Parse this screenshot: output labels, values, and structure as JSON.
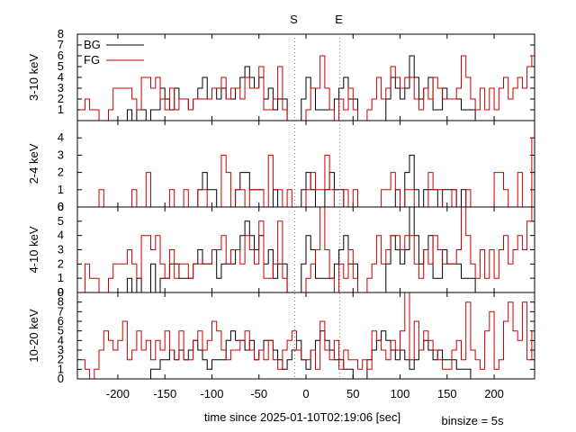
{
  "chart_data": {
    "type": "line",
    "xlabel": "time since 2025-01-10T02:19:06 [sec]",
    "binsize_label": "binsize = 5s",
    "xlim": [
      -243,
      243
    ],
    "xticks": [
      -200,
      -150,
      -100,
      -50,
      0,
      50,
      100,
      150,
      200
    ],
    "markers": [
      {
        "label": "S",
        "x": -12
      },
      {
        "label": "E",
        "x": 36
      }
    ],
    "legend": {
      "placement": "top-left",
      "entries": [
        {
          "name": "BG",
          "color": "#000000"
        },
        {
          "name": "FG",
          "color": "#cc0000"
        }
      ]
    },
    "colors": {
      "BG": "#000000",
      "FG": "#cc0000"
    },
    "x_start": -240,
    "bin_width": 5,
    "panels": [
      {
        "label": "3-10 keV",
        "ylim": [
          0,
          8
        ],
        "yticks": [
          1,
          2,
          3,
          4,
          5,
          6,
          7,
          8
        ],
        "series": [
          {
            "name": "BG",
            "values": [
              0,
              0,
              0,
              0,
              0,
              0,
              0,
              0,
              0,
              0,
              1,
              0,
              1,
              1,
              0,
              1,
              1,
              3,
              2,
              1,
              3,
              2,
              2,
              1,
              2,
              3,
              4,
              2,
              3,
              2,
              3,
              2,
              2,
              3,
              4,
              5,
              4,
              3,
              4,
              2,
              3,
              1,
              2,
              2,
              0,
              0,
              0,
              2,
              4,
              3,
              1,
              1,
              1,
              1,
              2,
              3,
              4,
              2,
              2,
              0,
              0,
              0,
              0,
              0,
              0,
              2,
              4,
              3,
              2,
              3,
              6,
              4,
              2,
              3,
              4,
              1,
              1,
              3,
              2,
              2,
              2,
              1,
              1,
              1,
              0,
              0,
              0,
              0,
              0,
              0,
              0,
              0,
              0,
              0,
              0,
              0,
              0
            ]
          },
          {
            "name": "FG",
            "values": [
              1,
              2,
              1,
              1,
              0,
              0,
              1,
              3,
              3,
              3,
              3,
              2,
              1,
              4,
              4,
              3,
              4,
              2,
              1,
              3,
              1,
              2,
              2,
              1,
              2,
              2,
              2,
              2,
              3,
              3,
              4,
              2,
              3,
              3,
              2,
              4,
              3,
              3,
              5,
              1,
              1,
              2,
              5,
              1,
              0,
              0,
              0,
              0,
              1,
              3,
              3,
              6,
              3,
              1,
              0,
              2,
              1,
              3,
              1,
              0,
              0,
              1,
              2,
              4,
              2,
              3,
              5,
              4,
              3,
              4,
              4,
              2,
              1,
              3,
              2,
              4,
              3,
              2,
              2,
              2,
              3,
              6,
              4,
              2,
              1,
              3,
              1,
              3,
              1,
              3,
              4,
              2,
              3,
              4,
              3,
              5,
              6
            ]
          }
        ]
      },
      {
        "label": "2-4 keV",
        "ylim": [
          0,
          5
        ],
        "yticks": [
          0,
          1,
          2,
          3,
          4
        ],
        "series": [
          {
            "name": "BG",
            "values": [
              0,
              0,
              0,
              0,
              0,
              0,
              0,
              0,
              0,
              0,
              0,
              0,
              0,
              0,
              0,
              0,
              0,
              0,
              0,
              0,
              0,
              0,
              0,
              0,
              0,
              1,
              2,
              1,
              1,
              0,
              0,
              0,
              0,
              1,
              2,
              2,
              1,
              1,
              1,
              0,
              0,
              1,
              0,
              0,
              0,
              0,
              0,
              1,
              2,
              1,
              0,
              0,
              1,
              2,
              1,
              1,
              0,
              0,
              0,
              0,
              0,
              0,
              0,
              0,
              0,
              0,
              0,
              1,
              0,
              2,
              3,
              1,
              0,
              1,
              1,
              1,
              0,
              1,
              1,
              1,
              0,
              1,
              0,
              0,
              0,
              0,
              0,
              0,
              0,
              0,
              0,
              0,
              0,
              0,
              0,
              0,
              0
            ]
          },
          {
            "name": "FG",
            "values": [
              0,
              0,
              0,
              0,
              1,
              0,
              0,
              0,
              0,
              0,
              0,
              1,
              0,
              0,
              2,
              0,
              0,
              0,
              0,
              1,
              0,
              0,
              1,
              0,
              0,
              1,
              1,
              0,
              0,
              0,
              3,
              2,
              0,
              1,
              1,
              0,
              1,
              1,
              1,
              0,
              3,
              1,
              1,
              0,
              1,
              0,
              0,
              0,
              1,
              2,
              1,
              1,
              3,
              1,
              0,
              0,
              1,
              0,
              1,
              0,
              0,
              0,
              0,
              0,
              1,
              1,
              2,
              1,
              0,
              1,
              1,
              0,
              0,
              0,
              2,
              1,
              1,
              0,
              0,
              1,
              0,
              0,
              1,
              0,
              0,
              0,
              0,
              0,
              2,
              2,
              1,
              0,
              0,
              2,
              0,
              0,
              4
            ]
          }
        ]
      },
      {
        "label": "4-10 keV",
        "ylim": [
          0,
          6
        ],
        "yticks": [
          0,
          1,
          2,
          3,
          4,
          5,
          6
        ],
        "series": [
          {
            "name": "BG",
            "values": [
              0,
              0,
              0,
              0,
              0,
              0,
              0,
              0,
              0,
              0,
              1,
              0,
              1,
              0,
              0,
              2,
              0,
              1,
              1,
              2,
              2,
              1,
              1,
              1,
              2,
              3,
              2,
              2,
              3,
              1,
              2,
              2,
              2,
              3,
              4,
              5,
              4,
              3,
              4,
              2,
              3,
              1,
              2,
              2,
              0,
              0,
              0,
              2,
              4,
              3,
              1,
              1,
              1,
              1,
              2,
              3,
              4,
              2,
              2,
              0,
              0,
              0,
              0,
              0,
              0,
              2,
              4,
              3,
              2,
              3,
              6,
              4,
              2,
              3,
              4,
              1,
              1,
              3,
              2,
              2,
              2,
              1,
              1,
              1,
              0,
              0,
              0,
              0,
              0,
              0,
              0,
              0,
              0,
              0,
              0,
              0,
              0
            ]
          },
          {
            "name": "FG",
            "values": [
              0,
              2,
              1,
              1,
              0,
              0,
              1,
              2,
              2,
              2,
              3,
              2,
              1,
              4,
              4,
              3,
              4,
              2,
              1,
              3,
              1,
              2,
              2,
              1,
              2,
              2,
              2,
              2,
              3,
              3,
              4,
              2,
              3,
              3,
              2,
              4,
              3,
              2,
              5,
              1,
              1,
              2,
              5,
              1,
              0,
              0,
              0,
              0,
              1,
              2,
              3,
              6,
              3,
              1,
              0,
              2,
              1,
              3,
              1,
              0,
              0,
              1,
              2,
              4,
              2,
              3,
              4,
              4,
              3,
              4,
              4,
              2,
              1,
              3,
              2,
              4,
              3,
              2,
              2,
              2,
              3,
              6,
              4,
              2,
              1,
              3,
              1,
              3,
              1,
              3,
              4,
              2,
              3,
              4,
              3,
              5,
              6
            ]
          }
        ]
      },
      {
        "label": "10-20 keV",
        "ylim": [
          0,
          9
        ],
        "yticks": [
          0,
          1,
          2,
          3,
          4,
          5,
          6,
          7,
          8,
          9
        ],
        "series": [
          {
            "name": "BG",
            "values": [
              0,
              0,
              0,
              0,
              0,
              0,
              0,
              0,
              0,
              0,
              0,
              0,
              0,
              0,
              0,
              1,
              1,
              2,
              2,
              3,
              2,
              3,
              2,
              3,
              4,
              3,
              2,
              1,
              2,
              2,
              2,
              4,
              5,
              4,
              4,
              3,
              4,
              2,
              3,
              4,
              4,
              3,
              2,
              1,
              2,
              3,
              4,
              2,
              1,
              3,
              4,
              5,
              4,
              3,
              2,
              2,
              1,
              1,
              0,
              0,
              0,
              2,
              3,
              4,
              5,
              4,
              3,
              2,
              3,
              2,
              1,
              2,
              3,
              4,
              3,
              2,
              3,
              2,
              2,
              2,
              1,
              1,
              1,
              0,
              0,
              0,
              0,
              0,
              0,
              0,
              0,
              0,
              0,
              0,
              0,
              0,
              0
            ]
          },
          {
            "name": "FG",
            "values": [
              2,
              1,
              0,
              1,
              3,
              5,
              4,
              3,
              4,
              6,
              2,
              3,
              5,
              3,
              4,
              2,
              4,
              3,
              5,
              3,
              2,
              5,
              2,
              2,
              4,
              5,
              3,
              4,
              6,
              5,
              3,
              2,
              3,
              3,
              4,
              5,
              3,
              2,
              3,
              2,
              4,
              2,
              1,
              3,
              4,
              5,
              3,
              2,
              2,
              3,
              1,
              6,
              3,
              2,
              4,
              1,
              3,
              2,
              2,
              1,
              2,
              1,
              5,
              4,
              3,
              2,
              4,
              3,
              5,
              9,
              2,
              6,
              3,
              5,
              4,
              3,
              2,
              1,
              1,
              3,
              4,
              2,
              8,
              3,
              2,
              1,
              5,
              7,
              1,
              2,
              6,
              8,
              5,
              4,
              8,
              2,
              5
            ]
          }
        ]
      }
    ]
  }
}
